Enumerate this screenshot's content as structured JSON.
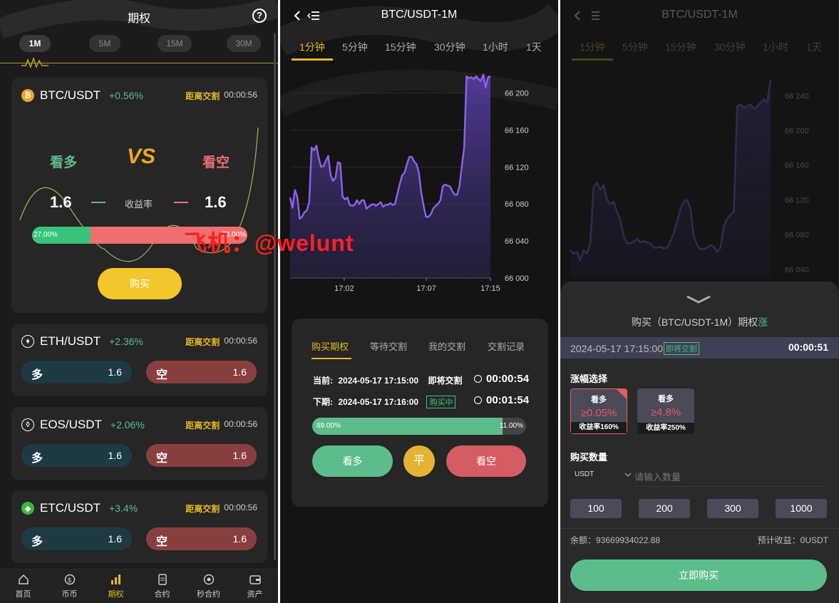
{
  "screen1": {
    "title": "期权",
    "intervals": [
      "1M",
      "5M",
      "15M",
      "30M"
    ],
    "main_card": {
      "pair": "BTC/USDT",
      "change": "+0.56%",
      "countdown_label": "距离交割",
      "countdown": "00:00:56",
      "long_label": "看多",
      "short_label": "看空",
      "long_value": "1.6",
      "short_value": "1.6",
      "rate_label": "收益率",
      "long_pct": "27.00%",
      "short_pct": "73.00%",
      "long_fraction": 0.27,
      "buy_label": "购买"
    },
    "cards": [
      {
        "pair": "ETH/USDT",
        "change": "+2.36%",
        "countdown_label": "距离交割",
        "countdown": "00:00:56",
        "long": "多",
        "long_value": "1.6",
        "short": "空",
        "short_value": "1.6",
        "icon": "eth-icon",
        "icon_color": "#ffffff"
      },
      {
        "pair": "EOS/USDT",
        "change": "+2.06%",
        "countdown_label": "距离交割",
        "countdown": "00:00:56",
        "long": "多",
        "long_value": "1.6",
        "short": "空",
        "short_value": "1.6",
        "icon": "eos-icon",
        "icon_color": "#ffffff"
      },
      {
        "pair": "ETC/USDT",
        "change": "+3.4%",
        "countdown_label": "距离交割",
        "countdown": "00:00:56",
        "long": "多",
        "long_value": "1.6",
        "short": "空",
        "short_value": "1.6",
        "icon": "etc-icon",
        "icon_color": "#3ab83a"
      }
    ],
    "nav": [
      "首页",
      "币币",
      "期权",
      "合约",
      "秒合约",
      "资产"
    ],
    "nav_active": 2
  },
  "screen2": {
    "title": "BTC/USDT-1M",
    "timeframes": [
      "1分钟",
      "5分钟",
      "15分钟",
      "30分钟",
      "1小时",
      "1天"
    ],
    "panel_tabs": [
      "购买期权",
      "等待交割",
      "我的交割",
      "交割记录"
    ],
    "current_label": "当前:",
    "current_time": "2024-05-17 17:15:00",
    "current_status": "即将交割",
    "current_countdown": "00:00:54",
    "next_label": "下期:",
    "next_time": "2024-05-17 17:16:00",
    "next_status": "购买中",
    "next_countdown": "00:01:54",
    "long_pct": "89.00%",
    "short_pct": "11.00%",
    "long_fraction": 0.89,
    "btn_long": "看多",
    "btn_flat": "平",
    "btn_short": "看空"
  },
  "screen3": {
    "title": "BTC/USDT-1M",
    "timeframes": [
      "1分钟",
      "5分钟",
      "15分钟",
      "30分钟",
      "1小时",
      "1天"
    ],
    "sheet_title": "购买（BTC/USDT-1M）期权",
    "sheet_title_dir": "涨",
    "ts_date": "2024-05-17 17:15:00",
    "ts_status": "即将交割",
    "ts_countdown": "00:00:51",
    "range_label": "涨幅选择",
    "options": [
      {
        "head": "看多",
        "value": "≥0.05%",
        "rate": "收益率160%"
      },
      {
        "head": "看多",
        "value": "≥4.8%",
        "rate": "收益率250%"
      }
    ],
    "qty_label": "购买数量",
    "currency": "USDT",
    "qty_placeholder": "请输入数量",
    "amounts": [
      "100",
      "200",
      "300",
      "1000"
    ],
    "balance": "余额：93669934022.88",
    "expected": "预计收益：0USDT",
    "submit": "立即购买"
  },
  "watermark": "飞机：@welunt",
  "chart_data": [
    {
      "type": "line",
      "title": "BTC/USDT-1M",
      "x_ticks": [
        "17:02",
        "17:07",
        "17:15"
      ],
      "y_ticks": [
        "66 000",
        "66 040",
        "66 080",
        "66 120",
        "66 160",
        "66 200"
      ],
      "ylim": [
        66000,
        66225
      ],
      "values": [
        66087,
        66076,
        66095,
        66088,
        66064,
        66066,
        66071,
        66073,
        66082,
        66141,
        66138,
        66143,
        66130,
        66120,
        66121,
        66127,
        66132,
        66111,
        66105,
        66108,
        66125,
        66124,
        66088,
        66085,
        66087,
        66079,
        66078,
        66079,
        66084,
        66080,
        66084,
        66084,
        66075,
        66077,
        66079,
        66080,
        66078,
        66080,
        66082,
        66077,
        66079,
        66079,
        66081,
        66079,
        66080,
        66091,
        66102,
        66111,
        66114,
        66123,
        66131,
        66131,
        66126,
        66123,
        66114,
        66092,
        66078,
        66066,
        66066,
        66069,
        66075,
        66078,
        66080,
        66084,
        66099,
        66101,
        66100,
        66099,
        66094,
        66090,
        66090,
        66099,
        66121,
        66141,
        66218,
        66216,
        66217,
        66215,
        66218,
        66215,
        66213,
        66220,
        66206,
        66217,
        66218
      ],
      "color": "#8b61e8"
    },
    {
      "type": "line",
      "title": "BTC/USDT-1M",
      "y_ticks": [
        "66 040",
        "66 080",
        "66 120",
        "66 160",
        "66 200",
        "66 240"
      ],
      "ylim": [
        66030,
        66260
      ],
      "values": [
        66062,
        66058,
        66060,
        66050,
        66062,
        66058,
        66070,
        66135,
        66140,
        66132,
        66137,
        66120,
        66115,
        66118,
        66106,
        66097,
        66078,
        66070,
        66070,
        66072,
        66075,
        66071,
        66073,
        66071,
        66070,
        66065,
        66065,
        66066,
        66064,
        66065,
        66072,
        66082,
        66095,
        66110,
        66118,
        66120,
        66110,
        66078,
        66068,
        66063,
        66063,
        66065,
        66068,
        66066,
        66060,
        66065,
        66090,
        66098,
        66103,
        66106,
        66228,
        66230,
        66226,
        66228,
        66230,
        66225,
        66228,
        66232,
        66236,
        66232,
        66258
      ],
      "color": "#8b61e8"
    }
  ]
}
